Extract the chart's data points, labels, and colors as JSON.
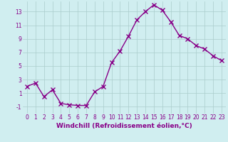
{
  "x": [
    0,
    1,
    2,
    3,
    4,
    5,
    6,
    7,
    8,
    9,
    10,
    11,
    12,
    13,
    14,
    15,
    16,
    17,
    18,
    19,
    20,
    21,
    22,
    23
  ],
  "y": [
    2.0,
    2.5,
    0.5,
    1.5,
    -0.5,
    -0.7,
    -0.8,
    -0.8,
    1.2,
    2.0,
    5.5,
    7.2,
    9.4,
    11.8,
    13.0,
    14.0,
    13.2,
    11.5,
    9.5,
    9.0,
    8.0,
    7.5,
    6.5,
    5.8
  ],
  "line_color": "#880088",
  "marker": "x",
  "marker_size": 4,
  "marker_lw": 1.0,
  "bg_color": "#d0eef0",
  "grid_color": "#aacccc",
  "xlabel": "Windchill (Refroidissement éolien,°C)",
  "xlabel_color": "#880088",
  "tick_color": "#880088",
  "ylim": [
    -2,
    14.5
  ],
  "xlim": [
    -0.5,
    23.5
  ],
  "yticks": [
    -1,
    1,
    3,
    5,
    7,
    9,
    11,
    13
  ],
  "xticks": [
    0,
    1,
    2,
    3,
    4,
    5,
    6,
    7,
    8,
    9,
    10,
    11,
    12,
    13,
    14,
    15,
    16,
    17,
    18,
    19,
    20,
    21,
    22,
    23
  ],
  "tick_fontsize": 5.5,
  "xlabel_fontsize": 6.5,
  "lw": 1.0
}
